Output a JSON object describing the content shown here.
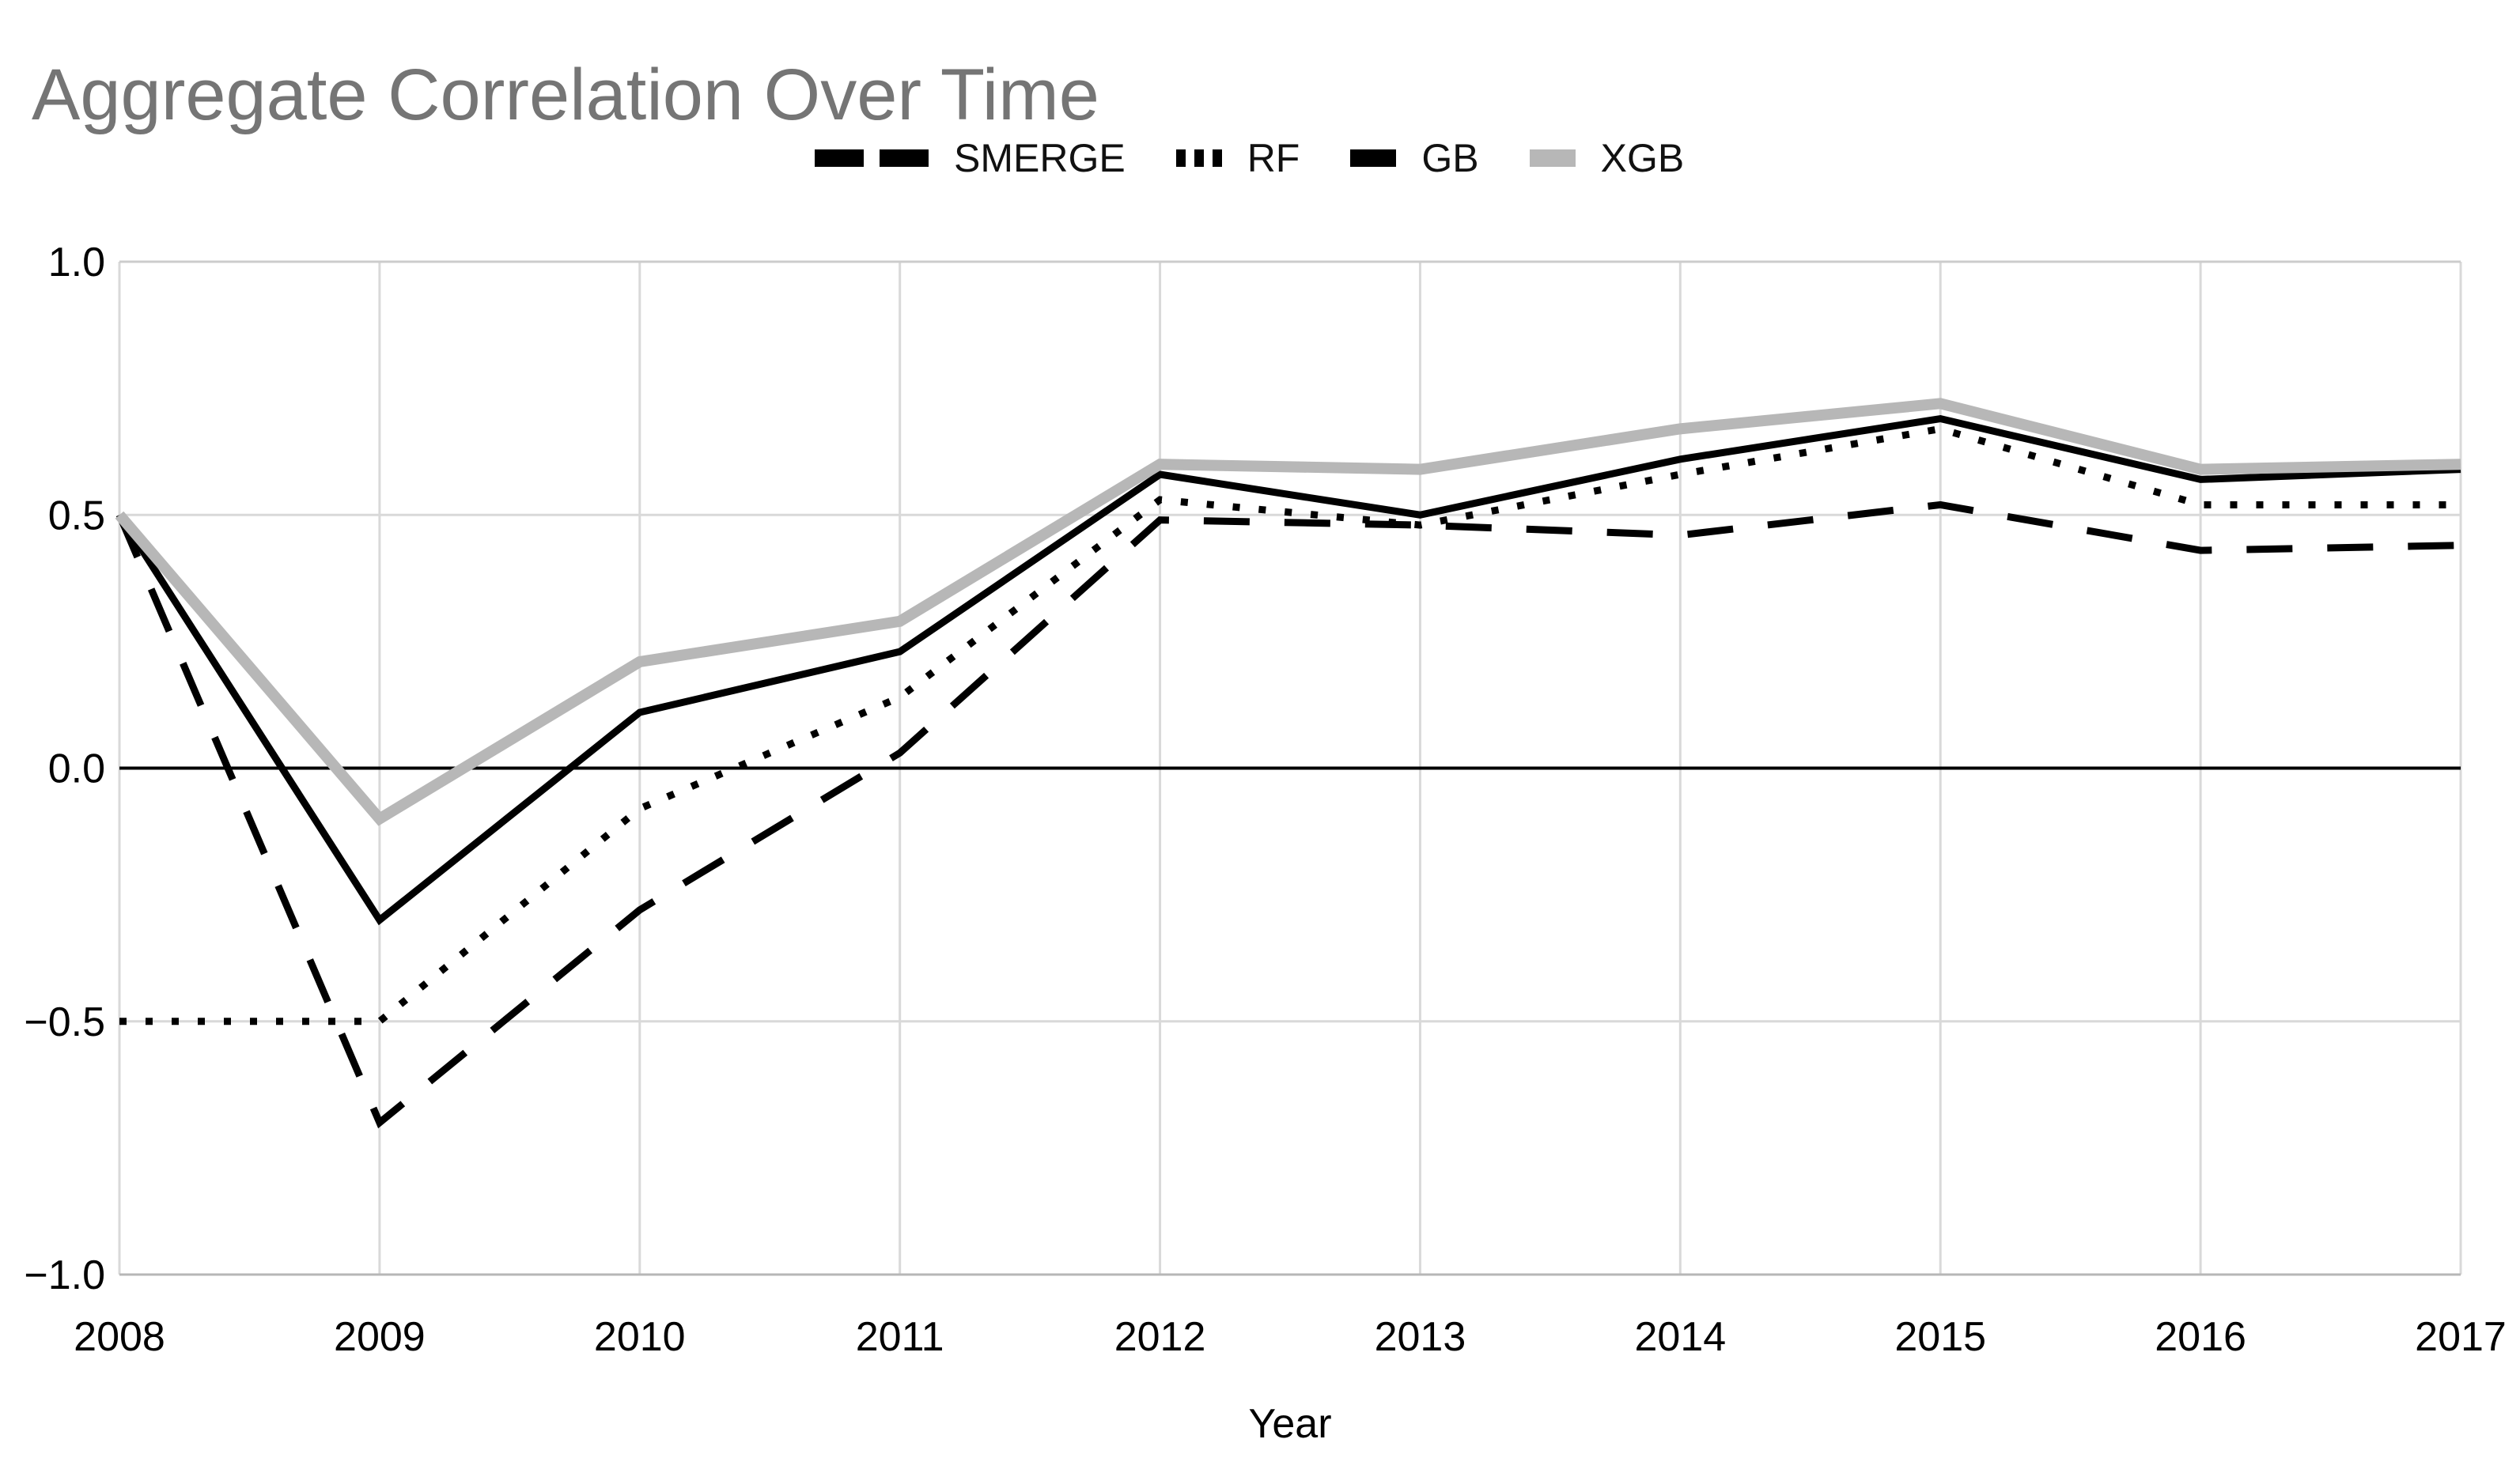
{
  "title": "Aggregate Correlation Over Time",
  "colors": {
    "series_black": "#000000",
    "xgb_gray": "#b7b7b7",
    "gridline": "#d9d9d9",
    "plot_border": "#cccccc",
    "bottom_border": "#b7b7b7",
    "zero_line": "#000000",
    "title_gray": "#757575",
    "tick_text": "#000000",
    "background": "#ffffff"
  },
  "legend": {
    "items": [
      {
        "label": "SMERGE",
        "style": "dashed",
        "color": "#000000"
      },
      {
        "label": "RF",
        "style": "dotted",
        "color": "#000000"
      },
      {
        "label": "GB",
        "style": "solid",
        "color": "#000000"
      },
      {
        "label": "XGB",
        "style": "solid",
        "color": "#b7b7b7"
      }
    ]
  },
  "chart_data": {
    "type": "line",
    "title": "Aggregate Correlation Over Time",
    "xlabel": "Year",
    "ylabel": "",
    "x": [
      2008,
      2009,
      2010,
      2011,
      2012,
      2013,
      2014,
      2015,
      2016,
      2017
    ],
    "x_tick_labels": [
      "2008",
      "2009",
      "2010",
      "2011",
      "2012",
      "2013",
      "2014",
      "2015",
      "2016",
      "2017"
    ],
    "y_ticks": [
      1.0,
      0.5,
      0.0,
      -0.5,
      -1.0
    ],
    "y_tick_labels": [
      "1.0",
      "0.5",
      "0.0",
      "−0.5",
      "−1.0"
    ],
    "ylim": [
      -1.0,
      1.0
    ],
    "grid": true,
    "legend_position": "top-center",
    "series": [
      {
        "name": "SMERGE",
        "style": "dashed",
        "color": "#000000",
        "stroke_width": 9,
        "values": [
          0.5,
          -0.7,
          -0.28,
          0.03,
          0.49,
          0.48,
          0.46,
          0.52,
          0.43,
          0.44
        ]
      },
      {
        "name": "RF",
        "style": "dotted",
        "color": "#000000",
        "stroke_width": 9,
        "values": [
          -0.5,
          -0.5,
          -0.08,
          0.14,
          0.53,
          0.48,
          0.58,
          0.67,
          0.52,
          0.52
        ]
      },
      {
        "name": "GB",
        "style": "solid",
        "color": "#000000",
        "stroke_width": 9,
        "values": [
          0.5,
          -0.3,
          0.11,
          0.23,
          0.58,
          0.5,
          0.61,
          0.69,
          0.57,
          0.59
        ]
      },
      {
        "name": "XGB",
        "style": "solid",
        "color": "#b7b7b7",
        "stroke_width": 14,
        "values": [
          0.5,
          -0.1,
          0.21,
          0.29,
          0.6,
          0.59,
          0.67,
          0.72,
          0.59,
          0.6
        ]
      }
    ]
  }
}
